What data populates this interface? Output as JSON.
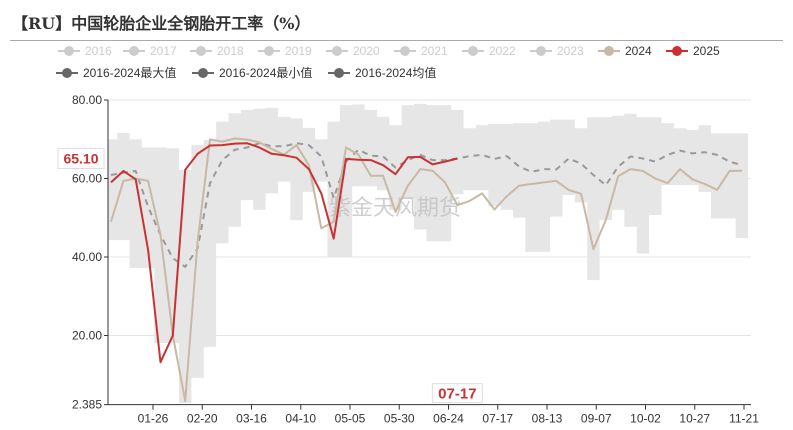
{
  "title": "【RU】中国轮胎企业全钢胎开工率（%）",
  "watermark": "紫金天风期货",
  "legend": [
    {
      "label": "2016",
      "color": "#cccccc",
      "active": false
    },
    {
      "label": "2017",
      "color": "#cccccc",
      "active": false
    },
    {
      "label": "2018",
      "color": "#cccccc",
      "active": false
    },
    {
      "label": "2019",
      "color": "#cccccc",
      "active": false
    },
    {
      "label": "2020",
      "color": "#cccccc",
      "active": false
    },
    {
      "label": "2021",
      "color": "#cccccc",
      "active": false
    },
    {
      "label": "2022",
      "color": "#cccccc",
      "active": false
    },
    {
      "label": "2023",
      "color": "#cccccc",
      "active": false
    },
    {
      "label": "2024",
      "color": "#c8b8a4",
      "active": true
    },
    {
      "label": "2025",
      "color": "#c83232",
      "active": true
    },
    {
      "label": "2016-2024最大值",
      "color": "#666666",
      "active": true
    },
    {
      "label": "2016-2024最小值",
      "color": "#666666",
      "active": true
    },
    {
      "label": "2016-2024均值",
      "color": "#666666",
      "active": true
    }
  ],
  "chart_data": {
    "type": "line",
    "title": "【RU】中国轮胎企业全钢胎开工率（%）",
    "x_tick_labels": [
      "01-26",
      "02-20",
      "03-16",
      "04-10",
      "05-05",
      "05-30",
      "06-24",
      "07-17",
      "08-13",
      "09-07",
      "10-02",
      "10-27",
      "11-21"
    ],
    "highlight_x_label": "07-17",
    "pointer_y_label": "65.10",
    "y_tick_labels": [
      "80.00",
      "60.00",
      "40.00",
      "20.00",
      "2.385"
    ],
    "ylim": [
      2.385,
      80
    ],
    "grid": true,
    "legend_placement": "top",
    "series": [
      {
        "name": "2024",
        "color": "#c8b8a4",
        "style": "line",
        "values": [
          49.0,
          59.4,
          60.0,
          59.4,
          45.6,
          20.1,
          3.3,
          43.9,
          70.0,
          69.4,
          70.2,
          69.9,
          69.2,
          67.5,
          66.1,
          68.5,
          63.4,
          47.3,
          49.0,
          67.9,
          66.1,
          60.7,
          60.7,
          51.5,
          58.2,
          62.4,
          62.0,
          59.0,
          53.2,
          54.3,
          56.2,
          52.1,
          55.5,
          58.2,
          58.6,
          59.0,
          59.4,
          57.1,
          56.1,
          42.0,
          49.4,
          60.6,
          62.4,
          61.9,
          60.0,
          58.8,
          62.4,
          59.8,
          58.6,
          57.1,
          61.9,
          62.0
        ]
      },
      {
        "name": "2025",
        "color": "#c83232",
        "style": "line",
        "values": [
          59.0,
          61.9,
          59.8,
          41.8,
          13.2,
          20.0,
          62.2,
          66.3,
          68.4,
          68.5,
          68.9,
          69.0,
          67.9,
          66.3,
          65.9,
          65.3,
          62.4,
          56.2,
          44.7,
          65.0,
          64.8,
          64.7,
          63.4,
          61.1,
          65.4,
          65.5,
          63.6,
          64.3,
          65.1
        ]
      },
      {
        "name": "2016-2024均值",
        "color": "#999999",
        "style": "dashed",
        "values": [
          60.9,
          61.5,
          61.9,
          52.8,
          45.6,
          39.7,
          37.5,
          42.2,
          58.8,
          64.7,
          67.3,
          67.9,
          69.0,
          68.2,
          68.2,
          69.0,
          68.5,
          65.6,
          55.0,
          64.3,
          67.3,
          65.8,
          65.6,
          62.8,
          64.7,
          66.0,
          64.7,
          64.7,
          65.1,
          65.7,
          66.0,
          65.0,
          65.7,
          63.0,
          61.7,
          62.4,
          62.3,
          65.1,
          63.8,
          60.9,
          58.3,
          63.0,
          65.6,
          65.1,
          64.3,
          66.0,
          67.1,
          66.4,
          66.7,
          66.0,
          64.3,
          63.4
        ]
      },
      {
        "name": "2016-2024最大值",
        "color": "#e6e6e6",
        "style": "area-upper",
        "values": [
          70.0,
          71.6,
          70.0,
          67.9,
          67.9,
          67.7,
          62.2,
          68.5,
          69.8,
          74.5,
          76.6,
          77.5,
          77.8,
          78.0,
          75.7,
          75.3,
          72.9,
          70.0,
          74.5,
          78.7,
          78.9,
          77.5,
          75.7,
          73.6,
          78.7,
          79.0,
          78.7,
          78.7,
          77.5,
          72.8,
          73.6,
          73.9,
          73.9,
          74.1,
          74.1,
          74.5,
          75.0,
          75.0,
          72.8,
          75.6,
          75.6,
          76.0,
          76.5,
          75.6,
          75.6,
          74.1,
          72.8,
          72.4,
          73.6,
          71.5,
          71.5,
          71.5
        ]
      },
      {
        "name": "2016-2024最小值",
        "color": "#e6e6e6",
        "style": "area-lower",
        "values": [
          44.3,
          44.3,
          37.2,
          37.2,
          18.1,
          18.1,
          2.8,
          9.2,
          17.1,
          43.5,
          47.7,
          54.5,
          52.0,
          56.2,
          59.2,
          49.4,
          56.6,
          59.2,
          40.1,
          40.1,
          58.0,
          58.0,
          57.0,
          52.0,
          55.0,
          47.0,
          44.0,
          44.0,
          56.0,
          57.0,
          57.0,
          53.0,
          52.0,
          50.0,
          41.3,
          41.3,
          50.3,
          55.8,
          53.9,
          34.1,
          49.4,
          52.0,
          47.7,
          40.9,
          50.7,
          58.3,
          58.3,
          58.3,
          56.6,
          49.8,
          49.8,
          44.8
        ]
      }
    ]
  }
}
